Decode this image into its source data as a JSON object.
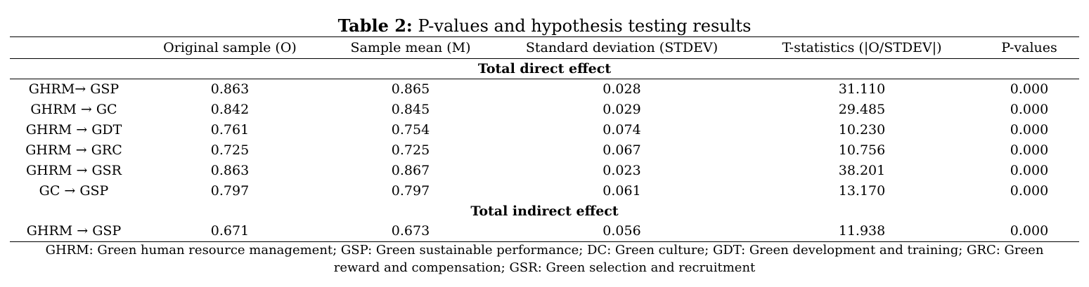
{
  "caption": {
    "label": "Table 2:",
    "text": "P-values and hypothesis testing results"
  },
  "table": {
    "columns": [
      "",
      "Original sample (O)",
      "Sample mean (M)",
      "Standard deviation (STDEV)",
      "T-statistics (|O/STDEV|)",
      "P-values"
    ],
    "sections": [
      {
        "title": "Total direct effect",
        "rows": [
          [
            "GHRM→ GSP",
            "0.863",
            "0.865",
            "0.028",
            "31.110",
            "0.000"
          ],
          [
            "GHRM → GC",
            "0.842",
            "0.845",
            "0.029",
            "29.485",
            "0.000"
          ],
          [
            "GHRM → GDT",
            "0.761",
            "0.754",
            "0.074",
            "10.230",
            "0.000"
          ],
          [
            "GHRM → GRC",
            "0.725",
            "0.725",
            "0.067",
            "10.756",
            "0.000"
          ],
          [
            "GHRM → GSR",
            "0.863",
            "0.867",
            "0.023",
            "38.201",
            "0.000"
          ],
          [
            "GC → GSP",
            "0.797",
            "0.797",
            "0.061",
            "13.170",
            "0.000"
          ]
        ]
      },
      {
        "title": "Total indirect effect",
        "rows": [
          [
            "GHRM → GSP",
            "0.671",
            "0.673",
            "0.056",
            "11.938",
            "0.000"
          ]
        ]
      }
    ]
  },
  "footnote": "GHRM: Green human resource management; GSP: Green sustainable performance; DC: Green culture; GDT: Green development and training; GRC: Green reward and compensation; GSR: Green selection and recruitment"
}
